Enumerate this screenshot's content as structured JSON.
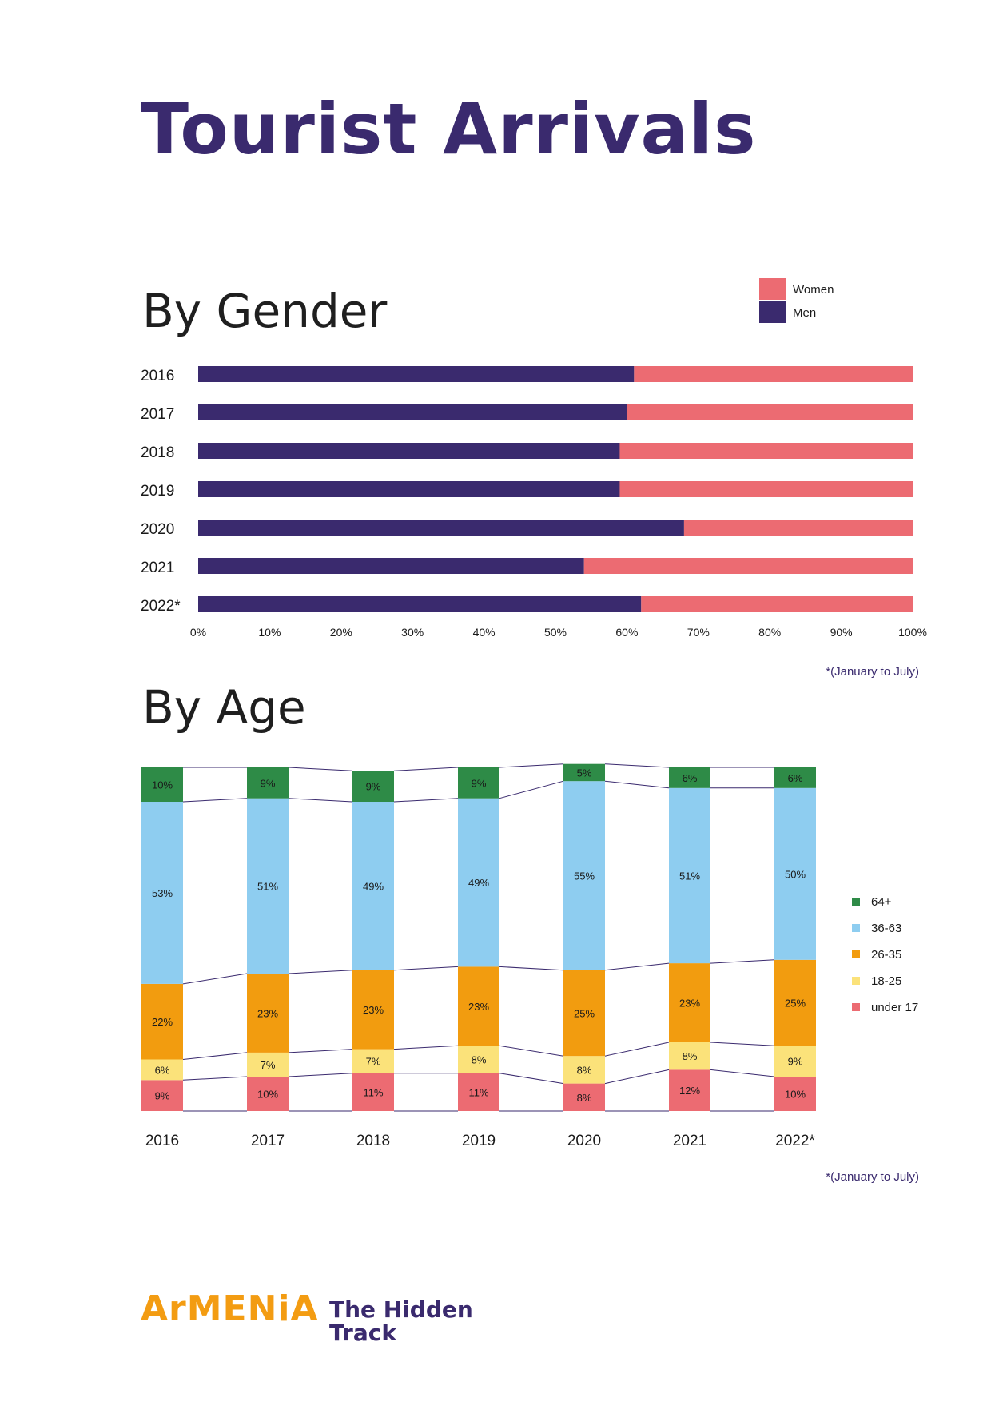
{
  "page": {
    "title": "Tourist Arrivals",
    "brand": "ArMENiA",
    "tagline_line1": "The Hidden",
    "tagline_line2": "Track"
  },
  "colors": {
    "title": "#3a2a6e",
    "men": "#3a2a6e",
    "women": "#ec6b72",
    "age_64_plus": "#2e8b47",
    "age_36_63": "#8ecdf0",
    "age_26_35": "#f29c0f",
    "age_18_25": "#fbe27a",
    "age_under_17": "#ec6b72",
    "brand": "#f39c12"
  },
  "chart_data": [
    {
      "type": "bar",
      "orientation": "horizontal",
      "stacked": true,
      "title": "By Gender",
      "categories": [
        "2016",
        "2017",
        "2018",
        "2019",
        "2020",
        "2021",
        "2022*"
      ],
      "series": [
        {
          "name": "Men",
          "values": [
            61,
            60,
            59,
            59,
            68,
            54,
            62
          ]
        },
        {
          "name": "Women",
          "values": [
            39,
            40,
            41,
            41,
            32,
            46,
            38
          ]
        }
      ],
      "xlim": [
        0,
        100
      ],
      "xticks": [
        "0%",
        "10%",
        "20%",
        "30%",
        "40%",
        "50%",
        "60%",
        "70%",
        "80%",
        "90%",
        "100%"
      ],
      "legend": {
        "position": "top-right",
        "entries": [
          "Women",
          "Men"
        ]
      },
      "footnote": "*(January to July)"
    },
    {
      "type": "bar",
      "stacked": true,
      "title": "By Age",
      "categories": [
        "2016",
        "2017",
        "2018",
        "2019",
        "2020",
        "2021",
        "2022*"
      ],
      "series": [
        {
          "name": "under 17",
          "values": [
            9,
            10,
            11,
            11,
            8,
            12,
            10
          ],
          "labels": [
            "9%",
            "10%",
            "11%",
            "11%",
            "8%",
            "12%",
            "10%"
          ]
        },
        {
          "name": "18-25",
          "values": [
            6,
            7,
            7,
            8,
            8,
            8,
            9
          ],
          "labels": [
            "6%",
            "7%",
            "7%",
            "8%",
            "8%",
            "8%",
            "9%"
          ]
        },
        {
          "name": "26-35",
          "values": [
            22,
            23,
            23,
            23,
            25,
            23,
            25
          ],
          "labels": [
            "22%",
            "23%",
            "23%",
            "23%",
            "25%",
            "23%",
            "25%"
          ]
        },
        {
          "name": "36-63",
          "values": [
            53,
            51,
            49,
            49,
            55,
            51,
            50
          ],
          "labels": [
            "53%",
            "51%",
            "49%",
            "49%",
            "55%",
            "51%",
            "50%"
          ]
        },
        {
          "name": "64+",
          "values": [
            10,
            9,
            9,
            9,
            5,
            6,
            6
          ],
          "labels": [
            "10%",
            "9%",
            "9%",
            "9%",
            "5%",
            "6%",
            "6%"
          ]
        }
      ],
      "ylim": [
        0,
        100
      ],
      "legend": {
        "position": "right",
        "entries": [
          "64+",
          "36-63",
          "26-35",
          "18-25",
          "under 17"
        ]
      },
      "footnote": "*(January to July)"
    }
  ]
}
